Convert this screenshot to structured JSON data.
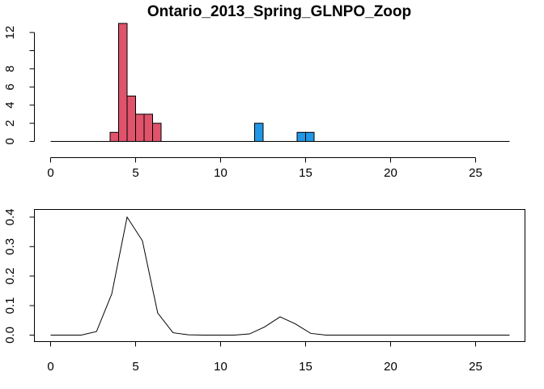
{
  "chart_data": [
    {
      "type": "bar",
      "title": "Ontario_2013_Spring_GLNPO_Zoop",
      "xlabel": "",
      "ylabel": "",
      "xlim": [
        0,
        27
      ],
      "ylim": [
        0,
        13
      ],
      "x_ticks": [
        "0",
        "5",
        "10",
        "15",
        "20",
        "25"
      ],
      "y_ticks": [
        "0",
        "2",
        "4",
        "6",
        "8",
        "12"
      ],
      "bin_width": 0.5,
      "series": [
        {
          "color": "#DF536B",
          "bins": [
            {
              "x0": 3.5,
              "count": 1
            },
            {
              "x0": 4.0,
              "count": 13
            },
            {
              "x0": 4.5,
              "count": 5
            },
            {
              "x0": 5.0,
              "count": 3
            },
            {
              "x0": 5.5,
              "count": 3
            },
            {
              "x0": 6.0,
              "count": 2
            }
          ]
        },
        {
          "color": "#2297E6",
          "bins": [
            {
              "x0": 12.0,
              "count": 2
            },
            {
              "x0": 14.5,
              "count": 1
            },
            {
              "x0": 15.0,
              "count": 1
            }
          ]
        }
      ],
      "baseline": [
        0,
        27
      ]
    },
    {
      "type": "line",
      "title": "",
      "xlabel": "",
      "ylabel": "",
      "xlim": [
        0,
        27
      ],
      "ylim": [
        0,
        0.4
      ],
      "x_ticks": [
        "0",
        "5",
        "10",
        "15",
        "20",
        "25"
      ],
      "y_ticks": [
        "0.0",
        "0.1",
        "0.2",
        "0.3",
        "0.4"
      ],
      "color": "#000000",
      "x": [
        0,
        1.8,
        2.7,
        3.6,
        4.5,
        5.4,
        6.3,
        7.2,
        8.1,
        9,
        9.9,
        10.8,
        11.7,
        12.6,
        13.5,
        14.4,
        15.3,
        16.2,
        17.1,
        27
      ],
      "y": [
        0,
        0,
        0.012,
        0.14,
        0.4,
        0.32,
        0.075,
        0.008,
        0.001,
        0,
        0,
        0,
        0.004,
        0.028,
        0.062,
        0.038,
        0.006,
        0,
        0,
        0
      ]
    }
  ]
}
